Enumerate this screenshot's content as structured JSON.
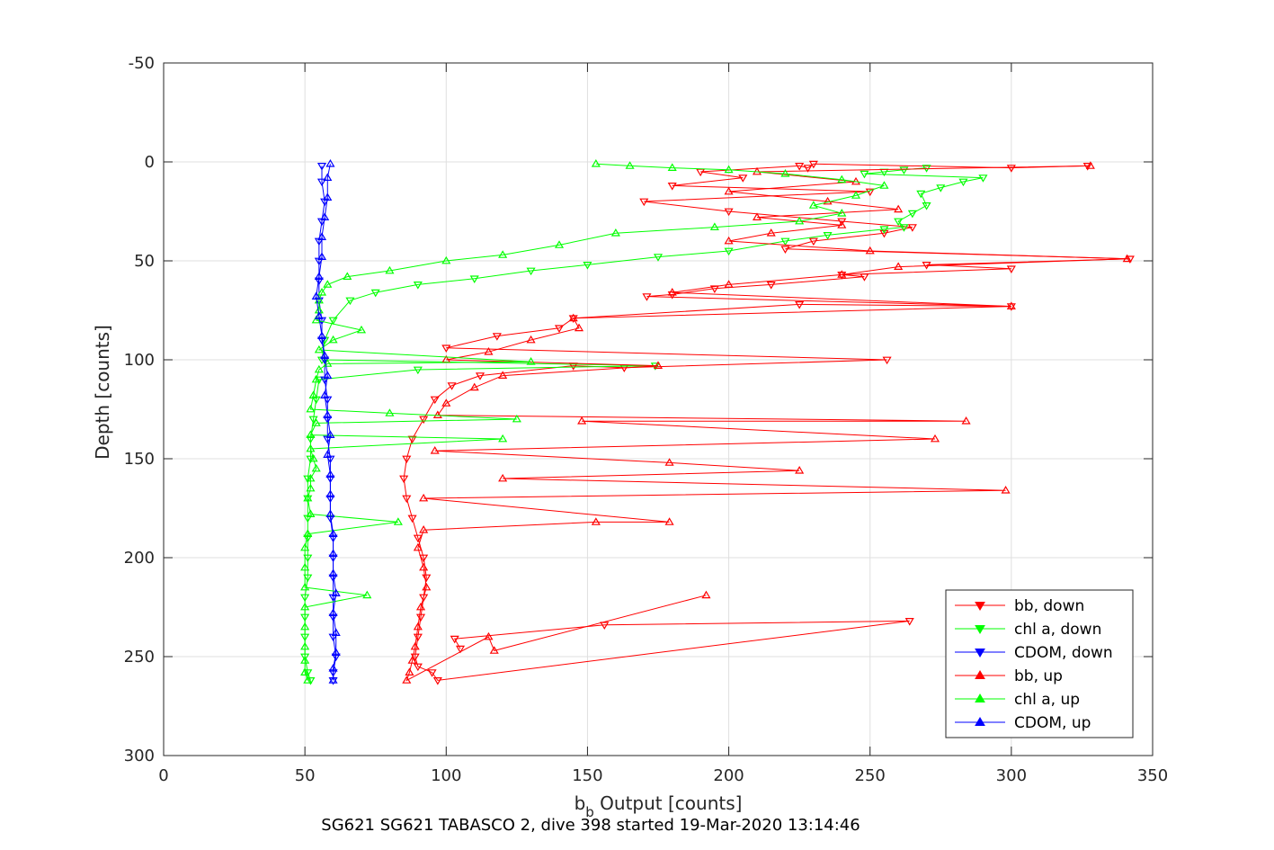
{
  "chart_data": {
    "type": "scatter",
    "title": "SG621 SG621 TABASCO 2, dive 398 started 19-Mar-2020 13:14:46",
    "xlabel_main": "b",
    "xlabel_sub": "b",
    "xlabel_rest": " Output [counts]",
    "ylabel": "Depth [counts]",
    "xlim": [
      0,
      350
    ],
    "ylim": [
      -50,
      300
    ],
    "y_reversed": true,
    "grid": true,
    "x_ticks": [
      "0",
      "50",
      "100",
      "150",
      "200",
      "250",
      "300",
      "350"
    ],
    "x_tick_values": [
      0,
      50,
      100,
      150,
      200,
      250,
      300,
      350
    ],
    "y_ticks": [
      "-50",
      "0",
      "50",
      "100",
      "150",
      "200",
      "250",
      "300"
    ],
    "y_tick_values": [
      -50,
      0,
      50,
      100,
      150,
      200,
      250,
      300
    ],
    "legend_position": "bottom-right",
    "series": [
      {
        "name": "bb, down",
        "color": "#ff0000",
        "marker": "triangle-down",
        "points": [
          [
            327,
            2
          ],
          [
            300,
            3
          ],
          [
            230,
            1
          ],
          [
            228,
            3
          ],
          [
            225,
            2
          ],
          [
            190,
            5
          ],
          [
            205,
            8
          ],
          [
            180,
            12
          ],
          [
            250,
            15
          ],
          [
            170,
            20
          ],
          [
            200,
            25
          ],
          [
            240,
            30
          ],
          [
            265,
            33
          ],
          [
            255,
            36
          ],
          [
            230,
            40
          ],
          [
            220,
            44
          ],
          [
            342,
            49
          ],
          [
            270,
            52
          ],
          [
            300,
            54
          ],
          [
            240,
            57
          ],
          [
            248,
            58
          ],
          [
            215,
            62
          ],
          [
            195,
            64
          ],
          [
            180,
            67
          ],
          [
            171,
            68
          ],
          [
            300,
            73
          ],
          [
            225,
            72
          ],
          [
            145,
            79
          ],
          [
            140,
            84
          ],
          [
            118,
            88
          ],
          [
            100,
            94
          ],
          [
            256,
            100
          ],
          [
            163,
            104
          ],
          [
            145,
            103
          ],
          [
            112,
            108
          ],
          [
            102,
            113
          ],
          [
            96,
            120
          ],
          [
            92,
            130
          ],
          [
            88,
            140
          ],
          [
            86,
            150
          ],
          [
            85,
            160
          ],
          [
            86,
            170
          ],
          [
            88,
            180
          ],
          [
            90,
            190
          ],
          [
            92,
            200
          ],
          [
            93,
            210
          ],
          [
            92,
            220
          ],
          [
            91,
            230
          ],
          [
            90,
            240
          ],
          [
            89,
            250
          ],
          [
            90,
            255
          ],
          [
            95,
            258
          ],
          [
            97,
            262
          ],
          [
            264,
            232
          ],
          [
            156,
            234
          ],
          [
            103,
            241
          ],
          [
            105,
            246
          ]
        ]
      },
      {
        "name": "chl a, down",
        "color": "#00ff00",
        "marker": "triangle-down",
        "points": [
          [
            270,
            3
          ],
          [
            262,
            4
          ],
          [
            255,
            5
          ],
          [
            248,
            6
          ],
          [
            290,
            8
          ],
          [
            283,
            10
          ],
          [
            275,
            13
          ],
          [
            268,
            16
          ],
          [
            270,
            22
          ],
          [
            265,
            26
          ],
          [
            260,
            30
          ],
          [
            262,
            33
          ],
          [
            255,
            34
          ],
          [
            235,
            37
          ],
          [
            220,
            40
          ],
          [
            200,
            45
          ],
          [
            175,
            48
          ],
          [
            150,
            52
          ],
          [
            130,
            55
          ],
          [
            110,
            59
          ],
          [
            90,
            62
          ],
          [
            75,
            66
          ],
          [
            66,
            70
          ],
          [
            60,
            80
          ],
          [
            57,
            90
          ],
          [
            56,
            100
          ],
          [
            174,
            103
          ],
          [
            90,
            105
          ],
          [
            55,
            110
          ],
          [
            54,
            120
          ],
          [
            53,
            130
          ],
          [
            52,
            140
          ],
          [
            52,
            150
          ],
          [
            51,
            160
          ],
          [
            51,
            170
          ],
          [
            51,
            180
          ],
          [
            51,
            190
          ],
          [
            51,
            200
          ],
          [
            51,
            210
          ],
          [
            50,
            220
          ],
          [
            50,
            230
          ],
          [
            50,
            240
          ],
          [
            50,
            250
          ],
          [
            51,
            258
          ],
          [
            52,
            262
          ]
        ]
      },
      {
        "name": "CDOM, down",
        "color": "#0000ff",
        "marker": "triangle-down",
        "points": [
          [
            56,
            2
          ],
          [
            56,
            10
          ],
          [
            57,
            20
          ],
          [
            56,
            30
          ],
          [
            55,
            40
          ],
          [
            55,
            50
          ],
          [
            55,
            60
          ],
          [
            55,
            70
          ],
          [
            56,
            80
          ],
          [
            56,
            90
          ],
          [
            57,
            100
          ],
          [
            57,
            110
          ],
          [
            58,
            120
          ],
          [
            58,
            130
          ],
          [
            58,
            140
          ],
          [
            59,
            150
          ],
          [
            59,
            160
          ],
          [
            59,
            170
          ],
          [
            59,
            180
          ],
          [
            60,
            190
          ],
          [
            60,
            200
          ],
          [
            60,
            210
          ],
          [
            60,
            220
          ],
          [
            60,
            230
          ],
          [
            60,
            240
          ],
          [
            61,
            250
          ],
          [
            60,
            258
          ],
          [
            60,
            262
          ]
        ]
      },
      {
        "name": "bb, up",
        "color": "#ff0000",
        "marker": "triangle-up",
        "points": [
          [
            328,
            2
          ],
          [
            210,
            5
          ],
          [
            245,
            10
          ],
          [
            200,
            15
          ],
          [
            235,
            20
          ],
          [
            260,
            24
          ],
          [
            210,
            28
          ],
          [
            240,
            32
          ],
          [
            215,
            36
          ],
          [
            200,
            40
          ],
          [
            250,
            45
          ],
          [
            341,
            49
          ],
          [
            260,
            53
          ],
          [
            240,
            57
          ],
          [
            200,
            62
          ],
          [
            180,
            66
          ],
          [
            300,
            73
          ],
          [
            145,
            79
          ],
          [
            147,
            84
          ],
          [
            130,
            90
          ],
          [
            115,
            96
          ],
          [
            100,
            100
          ],
          [
            175,
            103
          ],
          [
            120,
            108
          ],
          [
            110,
            114
          ],
          [
            100,
            122
          ],
          [
            97,
            128
          ],
          [
            284,
            131
          ],
          [
            148,
            131
          ],
          [
            273,
            140
          ],
          [
            96,
            146
          ],
          [
            179,
            152
          ],
          [
            225,
            156
          ],
          [
            120,
            160
          ],
          [
            298,
            166
          ],
          [
            92,
            170
          ],
          [
            179,
            182
          ],
          [
            153,
            182
          ],
          [
            92,
            186
          ],
          [
            90,
            195
          ],
          [
            92,
            205
          ],
          [
            93,
            215
          ],
          [
            91,
            225
          ],
          [
            90,
            235
          ],
          [
            89,
            245
          ],
          [
            88,
            252
          ],
          [
            87,
            258
          ],
          [
            86,
            262
          ],
          [
            115,
            240
          ],
          [
            117,
            247
          ],
          [
            192,
            219
          ]
        ]
      },
      {
        "name": "chl a, up",
        "color": "#00ff00",
        "marker": "triangle-up",
        "points": [
          [
            153,
            1
          ],
          [
            165,
            2
          ],
          [
            180,
            3
          ],
          [
            200,
            4
          ],
          [
            220,
            6
          ],
          [
            240,
            9
          ],
          [
            255,
            12
          ],
          [
            245,
            17
          ],
          [
            230,
            22
          ],
          [
            240,
            26
          ],
          [
            225,
            30
          ],
          [
            195,
            33
          ],
          [
            160,
            36
          ],
          [
            140,
            42
          ],
          [
            120,
            47
          ],
          [
            100,
            50
          ],
          [
            80,
            55
          ],
          [
            65,
            58
          ],
          [
            58,
            62
          ],
          [
            56,
            66
          ],
          [
            55,
            70
          ],
          [
            55,
            75
          ],
          [
            54,
            80
          ],
          [
            70,
            85
          ],
          [
            60,
            90
          ],
          [
            55,
            95
          ],
          [
            130,
            101
          ],
          [
            58,
            102
          ],
          [
            55,
            105
          ],
          [
            54,
            110
          ],
          [
            53,
            118
          ],
          [
            52,
            125
          ],
          [
            80,
            127
          ],
          [
            125,
            130
          ],
          [
            54,
            132
          ],
          [
            52,
            138
          ],
          [
            120,
            140
          ],
          [
            52,
            145
          ],
          [
            53,
            150
          ],
          [
            54,
            155
          ],
          [
            52,
            160
          ],
          [
            52,
            165
          ],
          [
            51,
            170
          ],
          [
            52,
            178
          ],
          [
            83,
            182
          ],
          [
            51,
            188
          ],
          [
            50,
            195
          ],
          [
            50,
            205
          ],
          [
            50,
            215
          ],
          [
            72,
            219
          ],
          [
            50,
            225
          ],
          [
            50,
            235
          ],
          [
            50,
            245
          ],
          [
            50,
            252
          ],
          [
            50,
            258
          ],
          [
            51,
            262
          ]
        ]
      },
      {
        "name": "CDOM, up",
        "color": "#0000ff",
        "marker": "triangle-up",
        "points": [
          [
            59,
            1
          ],
          [
            58,
            8
          ],
          [
            58,
            18
          ],
          [
            57,
            28
          ],
          [
            56,
            38
          ],
          [
            56,
            48
          ],
          [
            55,
            58
          ],
          [
            54,
            68
          ],
          [
            55,
            78
          ],
          [
            56,
            88
          ],
          [
            57,
            98
          ],
          [
            58,
            108
          ],
          [
            57,
            118
          ],
          [
            58,
            128
          ],
          [
            59,
            138
          ],
          [
            58,
            148
          ],
          [
            59,
            158
          ],
          [
            59,
            168
          ],
          [
            59,
            178
          ],
          [
            60,
            188
          ],
          [
            60,
            198
          ],
          [
            60,
            208
          ],
          [
            61,
            218
          ],
          [
            60,
            228
          ],
          [
            61,
            238
          ],
          [
            61,
            248
          ],
          [
            60,
            256
          ],
          [
            60,
            262
          ]
        ]
      }
    ]
  }
}
